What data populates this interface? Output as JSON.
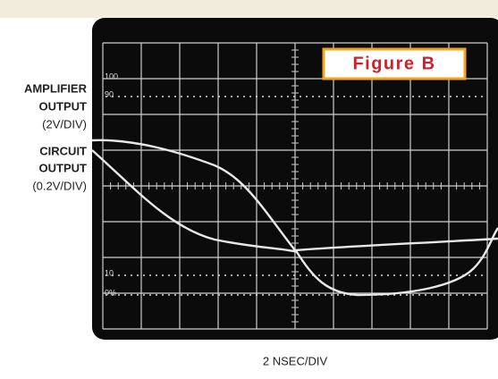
{
  "figure": {
    "label": "Figure B",
    "x_axis_label": "2 NSEC/DIV",
    "traces": [
      {
        "name": [
          "AMPLIFIER",
          "OUTPUT"
        ],
        "scale": "(2V/DIV)"
      },
      {
        "name": [
          "CIRCUIT",
          "OUTPUT"
        ],
        "scale": "(0.2V/DIV)"
      }
    ],
    "screen_labels": [
      "100",
      "90",
      "10",
      "0%"
    ]
  }
}
